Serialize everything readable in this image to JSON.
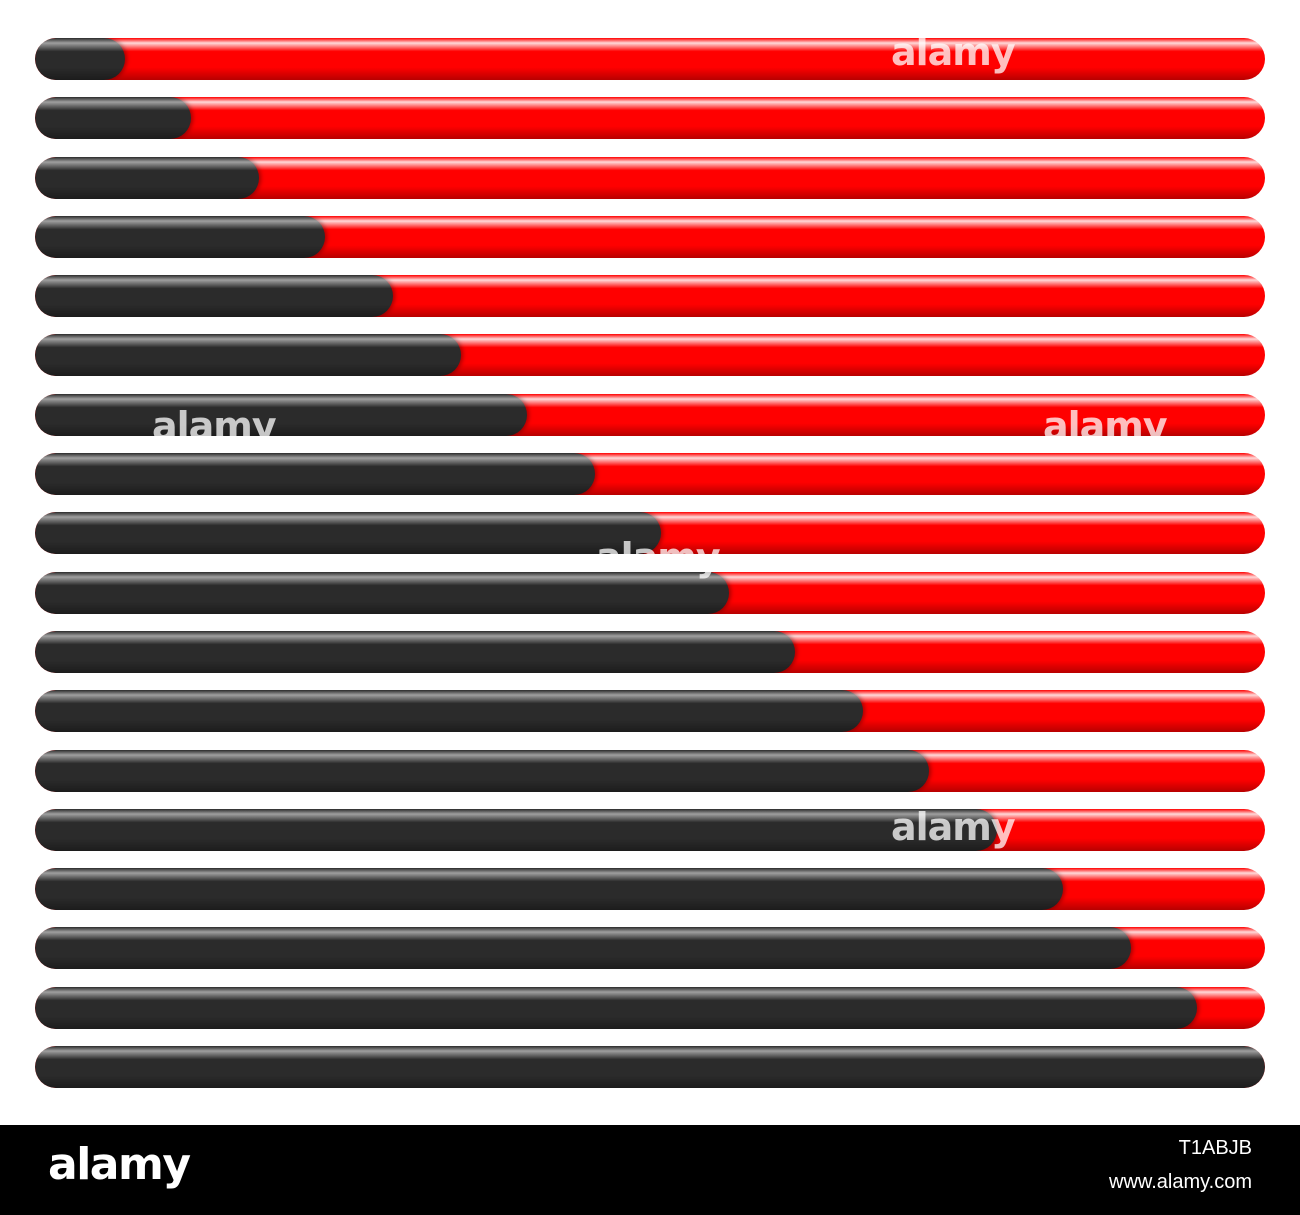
{
  "colors": {
    "track": "#ff0000",
    "fill": "#2b2b2b",
    "footer_background": "#000000",
    "footer_text": "#ffffff"
  },
  "progress_bars": [
    {
      "fill_percent": 7.3
    },
    {
      "fill_percent": 12.7
    },
    {
      "fill_percent": 18.2
    },
    {
      "fill_percent": 23.6
    },
    {
      "fill_percent": 29.1
    },
    {
      "fill_percent": 34.6
    },
    {
      "fill_percent": 40.0
    },
    {
      "fill_percent": 45.5
    },
    {
      "fill_percent": 50.9
    },
    {
      "fill_percent": 56.4
    },
    {
      "fill_percent": 61.8
    },
    {
      "fill_percent": 67.3
    },
    {
      "fill_percent": 72.7
    },
    {
      "fill_percent": 78.2
    },
    {
      "fill_percent": 83.6
    },
    {
      "fill_percent": 89.1
    },
    {
      "fill_percent": 94.5
    },
    {
      "fill_percent": 100.0
    }
  ],
  "watermark": {
    "text": "alamy"
  },
  "footer": {
    "logo": "alamy",
    "image_id": "T1ABJB",
    "url": "www.alamy.com"
  }
}
